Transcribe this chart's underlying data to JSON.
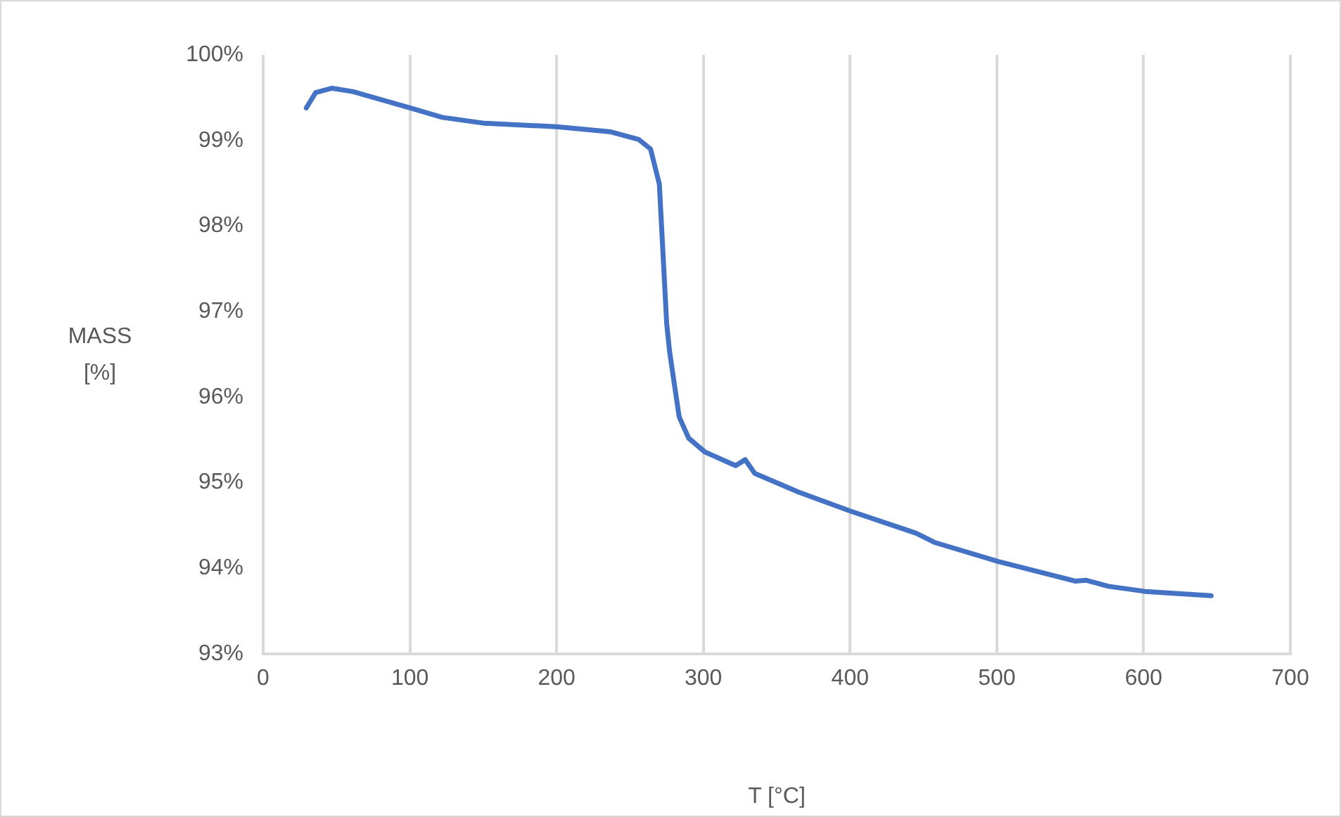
{
  "chart_data": {
    "type": "line",
    "xlabel": "T [°C]",
    "ylabel": "MASS\n[%]",
    "x": [
      29.4,
      35.8,
      47,
      61.4,
      100,
      122,
      151,
      200,
      237,
      256,
      264,
      270,
      275,
      277,
      283.5,
      290,
      301,
      322,
      328.5,
      335,
      365,
      400,
      445,
      458,
      501,
      553.5,
      561,
      576,
      601,
      646
    ],
    "series": [
      {
        "color": "#4472c4",
        "values": [
          99.38,
          99.56,
          99.61,
          99.57,
          99.38,
          99.27,
          99.2,
          99.16,
          99.1,
          99.01,
          98.9,
          98.49,
          96.86,
          96.53,
          95.77,
          95.52,
          95.36,
          95.2,
          95.27,
          95.11,
          94.89,
          94.67,
          94.41,
          94.3,
          94.08,
          93.85,
          93.86,
          93.79,
          93.73,
          93.68
        ]
      }
    ],
    "xlim": [
      0,
      700
    ],
    "xticks": [
      0,
      100,
      200,
      300,
      400,
      500,
      600,
      700
    ],
    "ylim": [
      93,
      100
    ],
    "yticks": [
      {
        "value": 93,
        "label": "93%"
      },
      {
        "value": 94,
        "label": "94%"
      },
      {
        "value": 95,
        "label": "95%"
      },
      {
        "value": 96,
        "label": "96%"
      },
      {
        "value": 97,
        "label": "97%"
      },
      {
        "value": 98,
        "label": "98%"
      },
      {
        "value": 99,
        "label": "99%"
      },
      {
        "value": 100,
        "label": "100%"
      }
    ],
    "grid": "x",
    "legend": false,
    "marker": "none",
    "line_style": "solid"
  }
}
